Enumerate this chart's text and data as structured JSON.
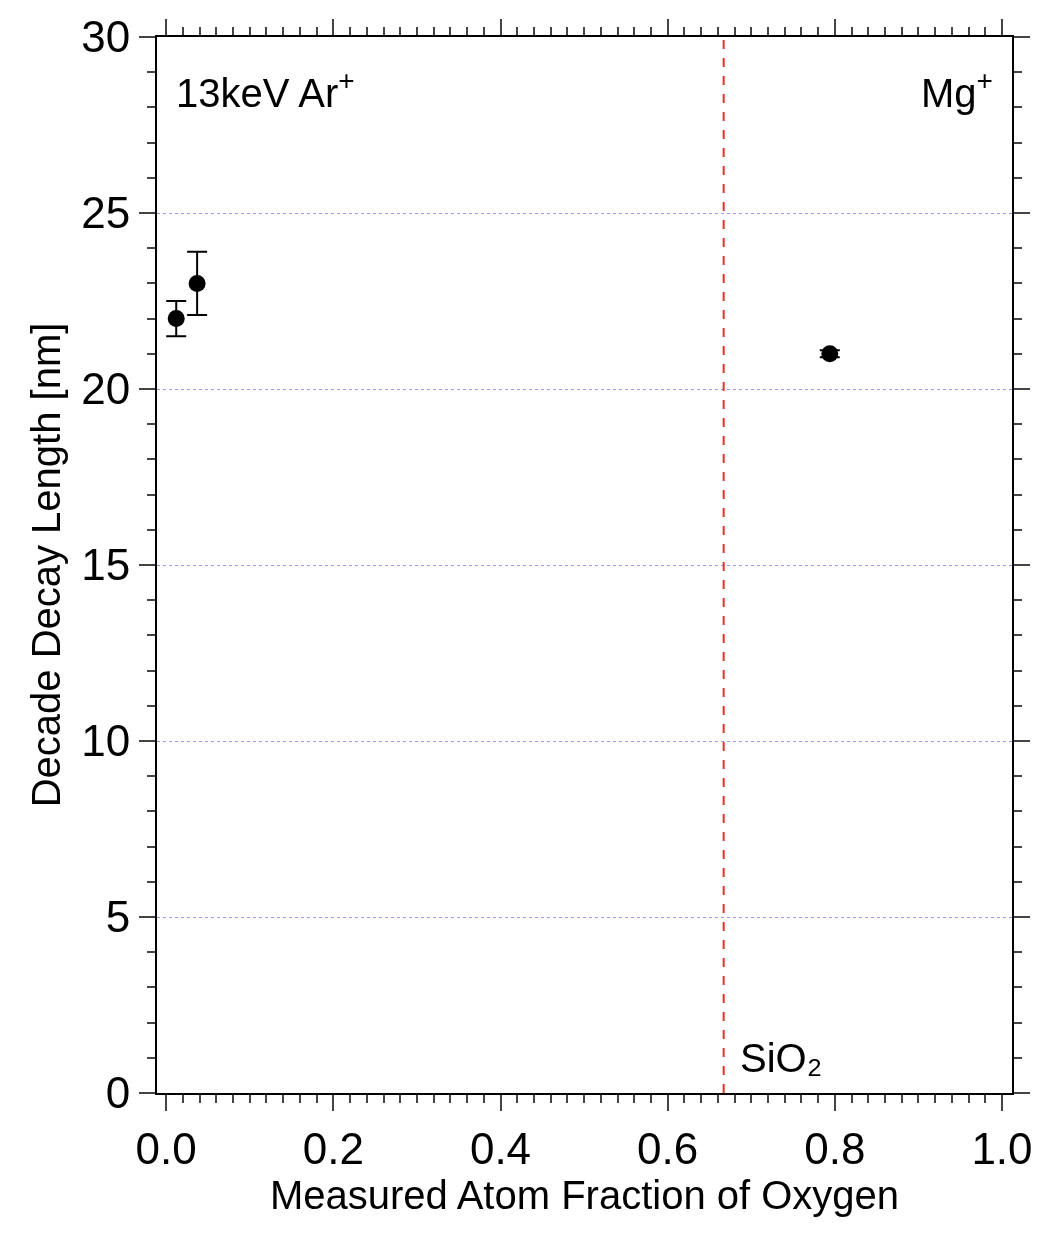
{
  "chart_data": {
    "type": "scatter",
    "xlabel": "Measured Atom Fraction of Oxygen",
    "ylabel": "Decade Decay Length [nm]",
    "x": [
      0.012,
      0.037,
      0.794
    ],
    "values": [
      22.0,
      23.0,
      21.0
    ],
    "errors": [
      0.5,
      0.9,
      0.1
    ],
    "color": "#000000",
    "marker": "circle",
    "xlim": [
      -0.011,
      1.012
    ],
    "xticks": [
      {
        "value": 0,
        "label": "0.0"
      },
      {
        "value": 0.02,
        "label": null
      },
      {
        "value": 0.04,
        "label": null
      },
      {
        "value": 0.06,
        "label": null
      },
      {
        "value": 0.08,
        "label": null
      },
      {
        "value": 0.1,
        "label": null
      },
      {
        "value": 0.12,
        "label": null
      },
      {
        "value": 0.14,
        "label": null
      },
      {
        "value": 0.16,
        "label": null
      },
      {
        "value": 0.18,
        "label": null
      },
      0.2,
      {
        "value": 0.22,
        "label": null
      },
      {
        "value": 0.24,
        "label": null
      },
      {
        "value": 0.26,
        "label": null
      },
      {
        "value": 0.28,
        "label": null
      },
      {
        "value": 0.3,
        "label": null
      },
      {
        "value": 0.32,
        "label": null
      },
      {
        "value": 0.34,
        "label": null
      },
      {
        "value": 0.36,
        "label": null
      },
      {
        "value": 0.38,
        "label": null
      },
      0.4,
      {
        "value": 0.42,
        "label": null
      },
      {
        "value": 0.44,
        "label": null
      },
      {
        "value": 0.46,
        "label": null
      },
      {
        "value": 0.48,
        "label": null
      },
      {
        "value": 0.5,
        "label": null
      },
      {
        "value": 0.52,
        "label": null
      },
      {
        "value": 0.54,
        "label": null
      },
      {
        "value": 0.56,
        "label": null
      },
      {
        "value": 0.58,
        "label": null
      },
      0.6,
      {
        "value": 0.62,
        "label": null
      },
      {
        "value": 0.64,
        "label": null
      },
      {
        "value": 0.66,
        "label": null
      },
      {
        "value": 0.68,
        "label": null
      },
      {
        "value": 0.7,
        "label": null
      },
      {
        "value": 0.72,
        "label": null
      },
      {
        "value": 0.74,
        "label": null
      },
      {
        "value": 0.76,
        "label": null
      },
      {
        "value": 0.78,
        "label": null
      },
      0.8,
      {
        "value": 0.82,
        "label": null
      },
      {
        "value": 0.84,
        "label": null
      },
      {
        "value": 0.86,
        "label": null
      },
      {
        "value": 0.88,
        "label": null
      },
      {
        "value": 0.9,
        "label": null
      },
      {
        "value": 0.92,
        "label": null
      },
      {
        "value": 0.94,
        "label": null
      },
      {
        "value": 0.96,
        "label": null
      },
      {
        "value": 0.98,
        "label": null
      },
      {
        "value": 1,
        "label": "1.0"
      }
    ],
    "ylim": [
      0,
      30
    ],
    "yticks": [
      0,
      {
        "value": 1,
        "label": null
      },
      {
        "value": 2,
        "label": null
      },
      {
        "value": 3,
        "label": null
      },
      {
        "value": 4,
        "label": null
      },
      5,
      {
        "value": 6,
        "label": null
      },
      {
        "value": 7,
        "label": null
      },
      {
        "value": 8,
        "label": null
      },
      {
        "value": 9,
        "label": null
      },
      10,
      {
        "value": 11,
        "label": null
      },
      {
        "value": 12,
        "label": null
      },
      {
        "value": 13,
        "label": null
      },
      {
        "value": 14,
        "label": null
      },
      15,
      {
        "value": 16,
        "label": null
      },
      {
        "value": 17,
        "label": null
      },
      {
        "value": 18,
        "label": null
      },
      {
        "value": 19,
        "label": null
      },
      20,
      {
        "value": 21,
        "label": null
      },
      {
        "value": 22,
        "label": null
      },
      {
        "value": 23,
        "label": null
      },
      {
        "value": 24,
        "label": null
      },
      25,
      {
        "value": 26,
        "label": null
      },
      {
        "value": 27,
        "label": null
      },
      {
        "value": 28,
        "label": null
      },
      {
        "value": 29,
        "label": null
      },
      30
    ],
    "grid": "y",
    "ref_lines": [
      {
        "axis": "x",
        "value": 0.667,
        "label": "SiO₂",
        "color": "#e8302a",
        "line_style": "dashed"
      }
    ],
    "annotations": [
      "13keV Ar$^{+}$",
      "Mg$^{+}$"
    ]
  }
}
